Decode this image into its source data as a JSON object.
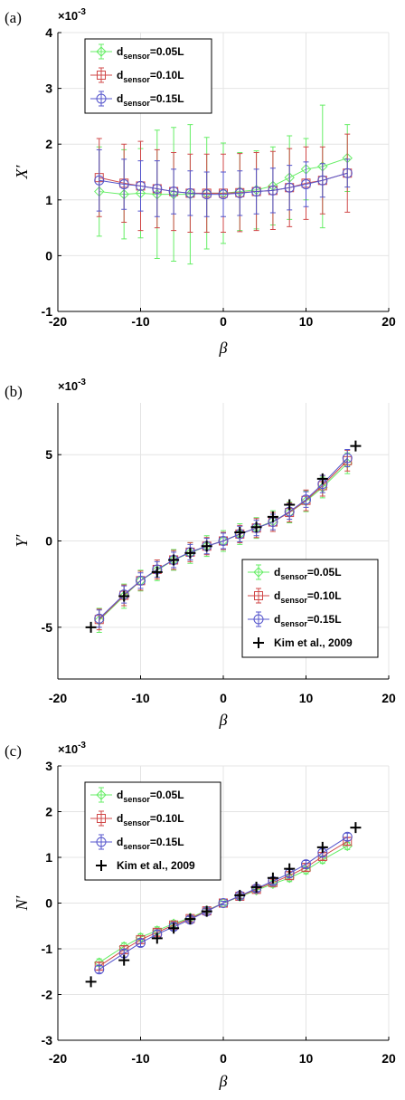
{
  "chart_data": [
    {
      "type": "line",
      "panel_label": "(a)",
      "multiplier": "×10",
      "multiplier_exp": "-3",
      "xlabel": "β",
      "ylabel": "X′",
      "xlim": [
        -20,
        20
      ],
      "ylim": [
        -1,
        4
      ],
      "xticks": [
        "-20",
        "-10",
        "0",
        "10",
        "20"
      ],
      "yticks": [
        "-1",
        "0",
        "1",
        "2",
        "3",
        "4"
      ],
      "grid": true,
      "legend_position": "top-left",
      "x": [
        -15,
        -12,
        -10,
        -8,
        -6,
        -4,
        -2,
        0,
        2,
        4,
        6,
        8,
        10,
        12,
        15
      ],
      "series": [
        {
          "name_main": "d",
          "name_sub": "sensor",
          "name_rest": "=0.05L",
          "color": "#66ee66",
          "marker": "diamond",
          "values": [
            1.15,
            1.1,
            1.12,
            1.1,
            1.1,
            1.1,
            1.12,
            1.12,
            1.15,
            1.18,
            1.25,
            1.4,
            1.55,
            1.6,
            1.75
          ],
          "errors": [
            0.8,
            0.8,
            0.8,
            1.15,
            1.2,
            1.25,
            1.0,
            0.9,
            0.7,
            0.7,
            0.7,
            0.75,
            0.55,
            1.1,
            0.6
          ]
        },
        {
          "name_main": "d",
          "name_sub": "sensor",
          "name_rest": "=0.10L",
          "color": "#d04848",
          "marker": "square",
          "values": [
            1.4,
            1.3,
            1.25,
            1.2,
            1.15,
            1.12,
            1.12,
            1.12,
            1.13,
            1.15,
            1.17,
            1.22,
            1.3,
            1.35,
            1.48
          ],
          "errors": [
            0.7,
            0.7,
            0.8,
            0.7,
            0.7,
            0.7,
            0.7,
            0.7,
            0.7,
            0.7,
            0.7,
            0.7,
            0.65,
            0.6,
            0.7
          ]
        },
        {
          "name_main": "d",
          "name_sub": "sensor",
          "name_rest": "=0.15L",
          "color": "#5555cc",
          "marker": "circle",
          "values": [
            1.35,
            1.28,
            1.25,
            1.2,
            1.15,
            1.12,
            1.1,
            1.1,
            1.12,
            1.15,
            1.17,
            1.22,
            1.28,
            1.35,
            1.48
          ],
          "errors": [
            0.55,
            0.45,
            0.45,
            0.5,
            0.4,
            0.4,
            0.4,
            0.4,
            0.4,
            0.4,
            0.4,
            0.4,
            0.4,
            0.3,
            0.25
          ]
        }
      ]
    },
    {
      "type": "line",
      "panel_label": "(b)",
      "multiplier": "×10",
      "multiplier_exp": "-3",
      "xlabel": "β",
      "ylabel": "Y′",
      "xlim": [
        -20,
        20
      ],
      "ylim": [
        -8,
        8
      ],
      "xticks": [
        "-20",
        "-10",
        "0",
        "10",
        "20"
      ],
      "yticks": [
        "-5",
        "0",
        "5"
      ],
      "ytick_values": [
        -5,
        0,
        5
      ],
      "grid": true,
      "legend_position": "bottom-right",
      "x": [
        -15,
        -12,
        -10,
        -8,
        -6,
        -4,
        -2,
        0,
        2,
        4,
        6,
        8,
        10,
        12,
        15
      ],
      "series": [
        {
          "name_main": "d",
          "name_sub": "sensor",
          "name_rest": "=0.05L",
          "color": "#66ee66",
          "marker": "diamond",
          "values": [
            -4.6,
            -3.2,
            -2.3,
            -1.7,
            -1.1,
            -0.7,
            -0.3,
            0.0,
            0.4,
            0.75,
            1.15,
            1.65,
            2.3,
            3.1,
            4.5
          ],
          "errors": [
            0.7,
            0.7,
            0.6,
            0.6,
            0.6,
            0.6,
            0.6,
            0.6,
            0.6,
            0.6,
            0.6,
            0.6,
            0.6,
            0.6,
            0.6
          ]
        },
        {
          "name_main": "d",
          "name_sub": "sensor",
          "name_rest": "=0.10L",
          "color": "#d04848",
          "marker": "square",
          "values": [
            -4.55,
            -3.15,
            -2.3,
            -1.65,
            -1.1,
            -0.65,
            -0.3,
            0.0,
            0.4,
            0.75,
            1.1,
            1.65,
            2.35,
            3.2,
            4.65
          ],
          "errors": [
            0.6,
            0.6,
            0.55,
            0.55,
            0.55,
            0.55,
            0.5,
            0.5,
            0.5,
            0.55,
            0.55,
            0.55,
            0.6,
            0.6,
            0.6
          ]
        },
        {
          "name_main": "d",
          "name_sub": "sensor",
          "name_rest": "=0.15L",
          "color": "#5555cc",
          "marker": "circle",
          "values": [
            -4.5,
            -3.1,
            -2.3,
            -1.65,
            -1.1,
            -0.65,
            -0.3,
            0.0,
            0.4,
            0.75,
            1.1,
            1.7,
            2.4,
            3.3,
            4.8
          ],
          "errors": [
            0.5,
            0.5,
            0.45,
            0.45,
            0.45,
            0.45,
            0.45,
            0.45,
            0.45,
            0.45,
            0.45,
            0.45,
            0.45,
            0.5,
            0.5
          ]
        },
        {
          "name": "Kim et al., 2009",
          "color": "#000000",
          "marker": "plus",
          "x": [
            -16,
            -12,
            -8,
            -6,
            -4,
            -2,
            2,
            4,
            6,
            8,
            12,
            16
          ],
          "values": [
            -5.0,
            -3.2,
            -1.8,
            -1.1,
            -0.7,
            -0.3,
            0.5,
            0.8,
            1.4,
            2.1,
            3.6,
            5.5
          ]
        }
      ]
    },
    {
      "type": "line",
      "panel_label": "(c)",
      "multiplier": "×10",
      "multiplier_exp": "-3",
      "xlabel": "β",
      "ylabel": "N′",
      "xlim": [
        -20,
        20
      ],
      "ylim": [
        -3,
        3
      ],
      "xticks": [
        "-20",
        "-10",
        "0",
        "10",
        "20"
      ],
      "yticks": [
        "-3",
        "-2",
        "-1",
        "0",
        "1",
        "2",
        "3"
      ],
      "grid": true,
      "legend_position": "top-left",
      "x": [
        -15,
        -12,
        -10,
        -8,
        -6,
        -4,
        -2,
        0,
        2,
        4,
        6,
        8,
        10,
        12,
        15
      ],
      "series": [
        {
          "name_main": "d",
          "name_sub": "sensor",
          "name_rest": "=0.05L",
          "color": "#66ee66",
          "marker": "diamond",
          "values": [
            -1.3,
            -0.95,
            -0.75,
            -0.6,
            -0.45,
            -0.32,
            -0.16,
            0.0,
            0.14,
            0.28,
            0.42,
            0.55,
            0.72,
            0.95,
            1.25
          ],
          "errors": [
            0.08,
            0.08,
            0.08,
            0.08,
            0.07,
            0.06,
            0.05,
            0.04,
            0.05,
            0.06,
            0.07,
            0.08,
            0.08,
            0.08,
            0.08
          ]
        },
        {
          "name_main": "d",
          "name_sub": "sensor",
          "name_rest": "=0.10L",
          "color": "#d04848",
          "marker": "square",
          "values": [
            -1.38,
            -1.02,
            -0.8,
            -0.64,
            -0.48,
            -0.34,
            -0.17,
            0.0,
            0.15,
            0.3,
            0.45,
            0.6,
            0.78,
            1.02,
            1.35
          ],
          "errors": [
            0.08,
            0.08,
            0.08,
            0.08,
            0.07,
            0.06,
            0.05,
            0.04,
            0.05,
            0.06,
            0.07,
            0.08,
            0.08,
            0.08,
            0.08
          ]
        },
        {
          "name_main": "d",
          "name_sub": "sensor",
          "name_rest": "=0.15L",
          "color": "#5555cc",
          "marker": "circle",
          "values": [
            -1.45,
            -1.1,
            -0.87,
            -0.68,
            -0.52,
            -0.36,
            -0.18,
            0.0,
            0.16,
            0.32,
            0.48,
            0.65,
            0.85,
            1.1,
            1.45
          ],
          "errors": [
            0.08,
            0.08,
            0.08,
            0.08,
            0.07,
            0.06,
            0.05,
            0.04,
            0.05,
            0.06,
            0.07,
            0.08,
            0.08,
            0.08,
            0.08
          ]
        },
        {
          "name": "Kim et al., 2009",
          "color": "#000000",
          "marker": "plus",
          "x": [
            -16,
            -12,
            -8,
            -6,
            -4,
            -2,
            2,
            4,
            6,
            8,
            12,
            16
          ],
          "values": [
            -1.72,
            -1.25,
            -0.77,
            -0.55,
            -0.35,
            -0.18,
            0.17,
            0.35,
            0.55,
            0.75,
            1.22,
            1.65
          ]
        }
      ]
    }
  ]
}
